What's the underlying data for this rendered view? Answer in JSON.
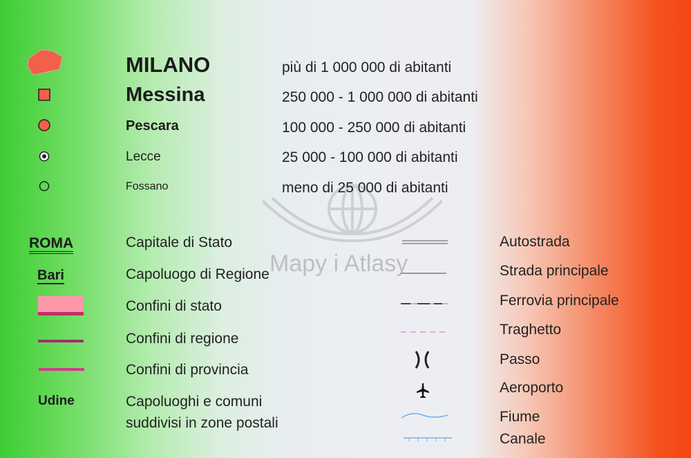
{
  "watermark": "Mapy i Atlasy",
  "colors": {
    "city_fill": "#f0604a",
    "state_border": "#ff99aa",
    "state_border_line": "#c0306a",
    "region_line": "#a0306a",
    "province_line": "#d03c8c",
    "ferry": "#f090c0",
    "river": "#70b0e8"
  },
  "cities": [
    {
      "icon": "city-area-icon",
      "name": "MILANO",
      "desc": "più di 1 000 000 di abitanti"
    },
    {
      "icon": "square-icon",
      "name": "Messina",
      "desc": "250 000 - 1 000 000 di abitanti"
    },
    {
      "icon": "filled-circle-icon",
      "name": "Pescara",
      "desc": "100 000 - 250 000 di abitanti"
    },
    {
      "icon": "dotted-circle-icon",
      "name": "Lecce",
      "desc": "25 000 - 100 000 di abitanti"
    },
    {
      "icon": "open-circle-icon",
      "name": "Fossano",
      "desc": "meno di 25 000 di abitanti"
    }
  ],
  "left": [
    {
      "symbol": "ROMA",
      "desc": "Capitale di Stato"
    },
    {
      "symbol": "Bari",
      "desc": "Capoluogo di Regione"
    },
    {
      "symbol": "",
      "desc": "Confini di stato"
    },
    {
      "symbol": "",
      "desc": "Confini di regione"
    },
    {
      "symbol": "",
      "desc": "Confini di provincia"
    },
    {
      "symbol": "Udine",
      "desc": "Capoluoghi e comuni",
      "desc2": "suddivisi in zone postali"
    }
  ],
  "right": [
    {
      "icon": "highway-icon",
      "desc": "Autostrada"
    },
    {
      "icon": "main-road-icon",
      "desc": "Strada principale"
    },
    {
      "icon": "railway-icon",
      "desc": "Ferrovia principale"
    },
    {
      "icon": "ferry-icon",
      "desc": "Traghetto"
    },
    {
      "icon": "pass-icon",
      "desc": "Passo"
    },
    {
      "icon": "airport-icon",
      "desc": "Aeroporto"
    },
    {
      "icon": "river-icon",
      "desc": "Fiume"
    },
    {
      "icon": "canal-icon",
      "desc": "Canale"
    }
  ]
}
